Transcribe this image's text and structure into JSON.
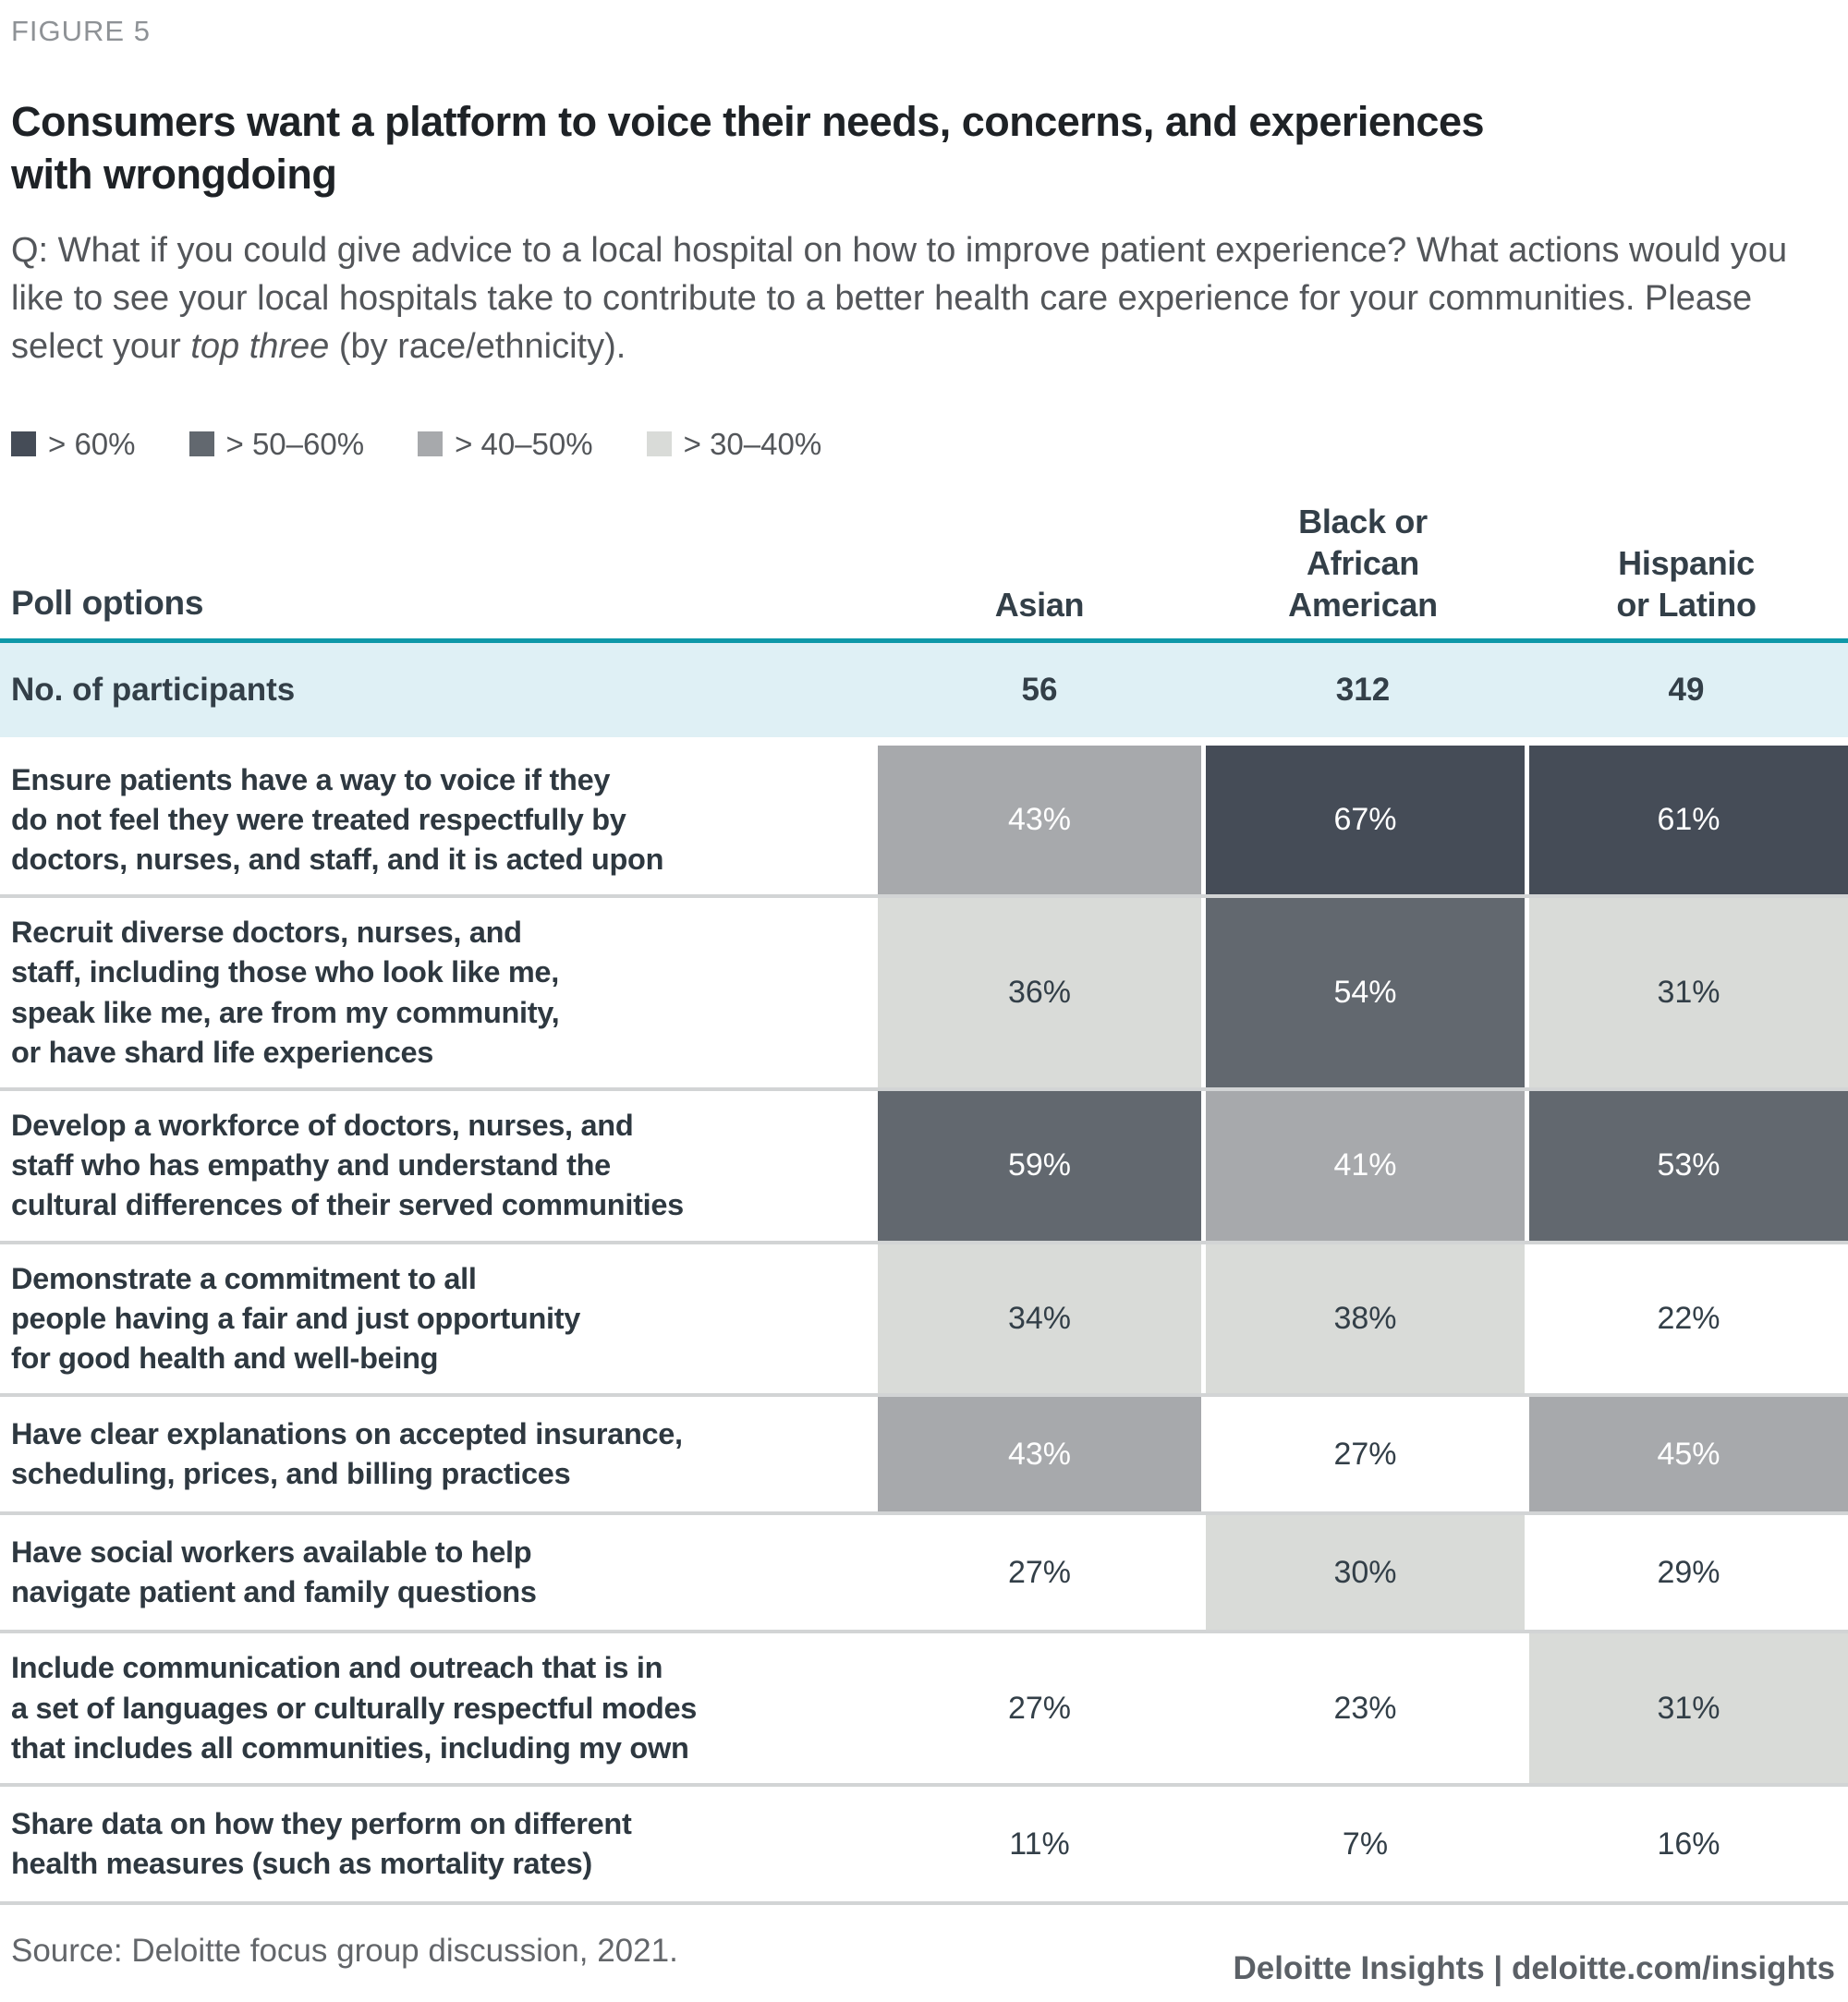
{
  "figure_label": "FIGURE 5",
  "title": {
    "line1": "Consumers want a platform to voice their needs, concerns, and experiences",
    "line2": "with wrongdoing"
  },
  "question": {
    "prefix": "Q: What if you could give advice to a local hospital on how to improve patient experience? What actions would you like to see your local hospitals take to contribute to a better health care experience for your communities. Please select your ",
    "italic": "top three",
    "suffix": " (by race/ethnicity)."
  },
  "legend": {
    "items": [
      {
        "label": "> 60%",
        "tier": "t60",
        "color": "#454C57"
      },
      {
        "label": "> 50–60%",
        "tier": "t50",
        "color": "#62686F"
      },
      {
        "label": "> 40–50%",
        "tier": "t40",
        "color": "#A7A9AC"
      },
      {
        "label": "> 30–40%",
        "tier": "t30",
        "color": "#D9DBD8"
      }
    ]
  },
  "table": {
    "col_headers": [
      "Poll options",
      "Asian",
      "Black or\nAfrican\nAmerican",
      "Hispanic\nor Latino"
    ],
    "participants_label": "No. of participants",
    "participants": [
      "56",
      "312",
      "49"
    ],
    "rows": [
      {
        "label": "Ensure patients have a way to voice if they\ndo not feel they were treated respectfully by\ndoctors, nurses, and staff, and it is acted upon",
        "values": [
          "43%",
          "67%",
          "61%"
        ],
        "tiers": [
          "t40",
          "t60",
          "t60"
        ]
      },
      {
        "label": "Recruit diverse doctors, nurses, and\nstaff, including those who look like me,\nspeak like me, are from my community,\nor have shard life experiences",
        "values": [
          "36%",
          "54%",
          "31%"
        ],
        "tiers": [
          "t30",
          "t50",
          "t30"
        ]
      },
      {
        "label": "Develop a workforce of doctors, nurses, and\nstaff who has empathy and understand the\ncultural differences of their served communities",
        "values": [
          "59%",
          "41%",
          "53%"
        ],
        "tiers": [
          "t50",
          "t40",
          "t50"
        ]
      },
      {
        "label": "Demonstrate a commitment to all\npeople having a fair and just opportunity\nfor good health and well-being",
        "values": [
          "34%",
          "38%",
          "22%"
        ],
        "tiers": [
          "t30",
          "t30",
          "white"
        ]
      },
      {
        "label": "Have clear explanations on accepted insurance,\nscheduling, prices, and billing practices",
        "values": [
          "43%",
          "27%",
          "45%"
        ],
        "tiers": [
          "t40",
          "white",
          "t40"
        ]
      },
      {
        "label": "Have social workers available to help\nnavigate patient and family questions",
        "values": [
          "27%",
          "30%",
          "29%"
        ],
        "tiers": [
          "white",
          "t30",
          "white"
        ]
      },
      {
        "label": "Include communication and outreach that is in\na set of languages or culturally respectful modes\nthat includes all communities, including my own",
        "values": [
          "27%",
          "23%",
          "31%"
        ],
        "tiers": [
          "white",
          "white",
          "t30"
        ]
      },
      {
        "label": "Share data on how they perform on different\nhealth measures (such as mortality rates)",
        "values": [
          "11%",
          "7%",
          "16%"
        ],
        "tiers": [
          "white",
          "white",
          "white"
        ]
      }
    ]
  },
  "source": "Source: Deloitte focus group discussion, 2021.",
  "footer": "Deloitte Insights | deloitte.com/insights",
  "accent_teal": "#0E98A8",
  "participants_row_bg": "#DFF0F5",
  "chart_data": {
    "type": "heatmap",
    "title": "Consumers want a platform to voice their needs, concerns, and experiences with wrongdoing",
    "subtitle": "Q: What if you could give advice to a local hospital on how to improve patient experience? What actions would you like to see your local hospitals take to contribute to a better health care experience for your communities. Please select your top three (by race/ethnicity).",
    "legend_entries": [
      "> 60%",
      "> 50–60%",
      "> 40–50%",
      "> 30–40%"
    ],
    "legend_position": "top-left",
    "columns": [
      "Asian",
      "Black or African American",
      "Hispanic or Latino"
    ],
    "participants": [
      56,
      312,
      49
    ],
    "categories": [
      "Ensure patients have a way to voice if they do not feel they were treated respectfully by doctors, nurses, and staff, and it is acted upon",
      "Recruit diverse doctors, nurses, and staff, including those who look like me, speak like me, are from my community, or have shard life experiences",
      "Develop a workforce of doctors, nurses, and staff who has empathy and understand the cultural differences of their served communities",
      "Demonstrate a commitment to all people having a fair and just opportunity for good health and well-being",
      "Have clear explanations on accepted insurance, scheduling, prices, and billing practices",
      "Have social workers available to help navigate patient and family questions",
      "Include communication and outreach that is in a set of languages or culturally respectful modes that includes all communities, including my own",
      "Share data on how they perform on different health measures (such as mortality rates)"
    ],
    "series": [
      {
        "name": "Asian",
        "values": [
          43,
          36,
          59,
          34,
          43,
          27,
          27,
          11
        ]
      },
      {
        "name": "Black or African American",
        "values": [
          67,
          54,
          41,
          38,
          27,
          30,
          23,
          7
        ]
      },
      {
        "name": "Hispanic or Latino",
        "values": [
          61,
          31,
          53,
          22,
          45,
          29,
          31,
          16
        ]
      }
    ],
    "value_unit": "%"
  }
}
